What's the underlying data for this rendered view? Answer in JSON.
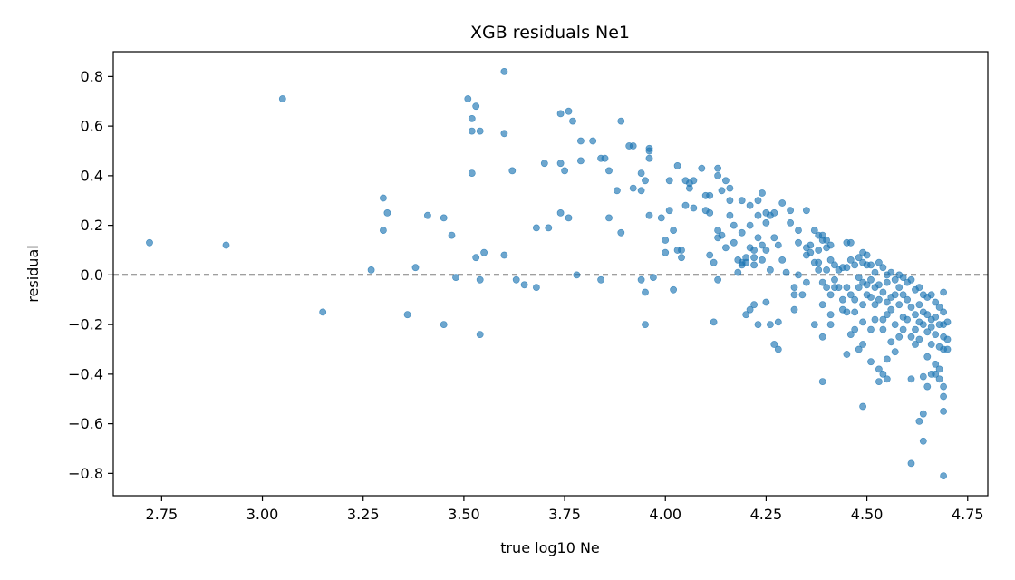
{
  "chart_data": {
    "type": "scatter",
    "title": "XGB residuals Ne1",
    "xlabel": "true log10 Ne",
    "ylabel": "residual",
    "xlim": [
      2.63,
      4.8
    ],
    "ylim": [
      -0.89,
      0.9
    ],
    "xticks": [
      2.75,
      3.0,
      3.25,
      3.5,
      3.75,
      4.0,
      4.25,
      4.5,
      4.75
    ],
    "xtick_labels": [
      "2.75",
      "3.00",
      "3.25",
      "3.50",
      "3.75",
      "4.00",
      "4.25",
      "4.50",
      "4.75"
    ],
    "yticks": [
      -0.8,
      -0.6,
      -0.4,
      -0.2,
      0.0,
      0.2,
      0.4,
      0.6,
      0.8
    ],
    "ytick_labels": [
      "−0.8",
      "−0.6",
      "−0.4",
      "−0.2",
      "0.0",
      "0.2",
      "0.4",
      "0.6",
      "0.8"
    ],
    "reference_line": {
      "y": 0.0,
      "style": "dashed",
      "color": "#000000"
    },
    "grid": false,
    "legend": "none",
    "point_color": "#1f77b4",
    "points": [
      [
        2.72,
        0.13
      ],
      [
        2.91,
        0.12
      ],
      [
        3.05,
        0.71
      ],
      [
        3.15,
        -0.15
      ],
      [
        3.27,
        0.02
      ],
      [
        3.3,
        0.31
      ],
      [
        3.31,
        0.25
      ],
      [
        3.3,
        0.18
      ],
      [
        3.36,
        -0.16
      ],
      [
        3.38,
        0.03
      ],
      [
        3.41,
        0.24
      ],
      [
        3.45,
        0.23
      ],
      [
        3.45,
        -0.2
      ],
      [
        3.47,
        0.16
      ],
      [
        3.48,
        -0.01
      ],
      [
        3.51,
        0.71
      ],
      [
        3.52,
        0.63
      ],
      [
        3.53,
        0.68
      ],
      [
        3.52,
        0.58
      ],
      [
        3.54,
        0.58
      ],
      [
        3.52,
        0.41
      ],
      [
        3.53,
        0.07
      ],
      [
        3.55,
        0.09
      ],
      [
        3.54,
        -0.02
      ],
      [
        3.54,
        -0.24
      ],
      [
        3.6,
        0.82
      ],
      [
        3.6,
        0.57
      ],
      [
        3.62,
        0.42
      ],
      [
        3.6,
        0.08
      ],
      [
        3.63,
        -0.02
      ],
      [
        3.65,
        -0.04
      ],
      [
        3.68,
        -0.05
      ],
      [
        3.68,
        0.19
      ],
      [
        3.7,
        0.45
      ],
      [
        3.71,
        0.19
      ],
      [
        3.74,
        0.65
      ],
      [
        3.76,
        0.66
      ],
      [
        3.77,
        0.62
      ],
      [
        3.74,
        0.45
      ],
      [
        3.75,
        0.42
      ],
      [
        3.74,
        0.25
      ],
      [
        3.76,
        0.23
      ],
      [
        3.78,
        0.0
      ],
      [
        3.79,
        0.54
      ],
      [
        3.79,
        0.46
      ],
      [
        3.82,
        0.54
      ],
      [
        3.84,
        0.47
      ],
      [
        3.85,
        0.47
      ],
      [
        3.86,
        0.42
      ],
      [
        3.86,
        0.23
      ],
      [
        3.84,
        -0.02
      ],
      [
        3.88,
        0.34
      ],
      [
        3.89,
        0.62
      ],
      [
        3.89,
        0.17
      ],
      [
        3.91,
        0.52
      ],
      [
        3.92,
        0.52
      ],
      [
        3.92,
        0.35
      ],
      [
        3.94,
        0.41
      ],
      [
        3.95,
        0.38
      ],
      [
        3.94,
        0.34
      ],
      [
        3.94,
        -0.02
      ],
      [
        3.96,
        0.51
      ],
      [
        3.96,
        0.5
      ],
      [
        3.96,
        0.47
      ],
      [
        3.96,
        0.24
      ],
      [
        3.95,
        -0.07
      ],
      [
        3.95,
        -0.2
      ],
      [
        3.97,
        -0.01
      ],
      [
        3.99,
        0.23
      ],
      [
        4.0,
        0.14
      ],
      [
        4.0,
        0.09
      ],
      [
        4.01,
        0.38
      ],
      [
        4.01,
        0.26
      ],
      [
        4.02,
        0.18
      ],
      [
        4.03,
        0.44
      ],
      [
        4.03,
        0.1
      ],
      [
        4.04,
        0.1
      ],
      [
        4.04,
        0.07
      ],
      [
        4.05,
        0.38
      ],
      [
        4.05,
        0.28
      ],
      [
        4.02,
        -0.06
      ],
      [
        4.06,
        0.37
      ],
      [
        4.06,
        0.35
      ],
      [
        4.07,
        0.38
      ],
      [
        4.07,
        0.27
      ],
      [
        4.09,
        0.43
      ],
      [
        4.1,
        0.32
      ],
      [
        4.11,
        0.32
      ],
      [
        4.1,
        0.26
      ],
      [
        4.11,
        0.25
      ],
      [
        4.12,
        0.05
      ],
      [
        4.11,
        0.08
      ],
      [
        4.13,
        0.43
      ],
      [
        4.13,
        0.4
      ],
      [
        4.14,
        0.34
      ],
      [
        4.13,
        0.18
      ],
      [
        4.14,
        0.16
      ],
      [
        4.13,
        0.15
      ],
      [
        4.12,
        -0.19
      ],
      [
        4.13,
        -0.02
      ],
      [
        4.15,
        0.38
      ],
      [
        4.16,
        0.35
      ],
      [
        4.16,
        0.3
      ],
      [
        4.16,
        0.24
      ],
      [
        4.15,
        0.11
      ],
      [
        4.17,
        0.2
      ],
      [
        4.17,
        0.13
      ],
      [
        4.18,
        0.06
      ],
      [
        4.18,
        0.01
      ],
      [
        4.19,
        0.3
      ],
      [
        4.19,
        0.17
      ],
      [
        4.19,
        0.05
      ],
      [
        4.19,
        0.04
      ],
      [
        4.2,
        0.05
      ],
      [
        4.2,
        0.07
      ],
      [
        4.21,
        0.28
      ],
      [
        4.21,
        0.2
      ],
      [
        4.21,
        0.11
      ],
      [
        4.22,
        0.1
      ],
      [
        4.22,
        0.07
      ],
      [
        4.22,
        0.04
      ],
      [
        4.23,
        0.3
      ],
      [
        4.23,
        0.24
      ],
      [
        4.23,
        0.15
      ],
      [
        4.24,
        0.33
      ],
      [
        4.24,
        0.12
      ],
      [
        4.24,
        0.06
      ],
      [
        4.25,
        0.25
      ],
      [
        4.25,
        0.21
      ],
      [
        4.25,
        0.1
      ],
      [
        4.26,
        0.24
      ],
      [
        4.27,
        0.25
      ],
      [
        4.27,
        0.15
      ],
      [
        4.26,
        0.02
      ],
      [
        4.25,
        -0.11
      ],
      [
        4.23,
        -0.2
      ],
      [
        4.22,
        -0.12
      ],
      [
        4.21,
        -0.14
      ],
      [
        4.2,
        -0.16
      ],
      [
        4.26,
        -0.2
      ],
      [
        4.27,
        -0.28
      ],
      [
        4.28,
        -0.3
      ],
      [
        4.28,
        -0.19
      ],
      [
        4.28,
        0.12
      ],
      [
        4.29,
        0.29
      ],
      [
        4.29,
        0.06
      ],
      [
        4.3,
        0.01
      ],
      [
        4.31,
        0.26
      ],
      [
        4.31,
        0.21
      ],
      [
        4.32,
        -0.14
      ],
      [
        4.32,
        -0.08
      ],
      [
        4.32,
        -0.05
      ],
      [
        4.33,
        0.18
      ],
      [
        4.33,
        0.13
      ],
      [
        4.33,
        0.0
      ],
      [
        4.34,
        -0.08
      ],
      [
        4.35,
        0.26
      ],
      [
        4.35,
        0.11
      ],
      [
        4.35,
        -0.03
      ],
      [
        4.35,
        0.08
      ],
      [
        4.36,
        0.12
      ],
      [
        4.36,
        0.09
      ],
      [
        4.37,
        0.18
      ],
      [
        4.37,
        0.05
      ],
      [
        4.37,
        -0.2
      ],
      [
        4.38,
        0.16
      ],
      [
        4.38,
        0.1
      ],
      [
        4.38,
        0.05
      ],
      [
        4.38,
        0.02
      ],
      [
        4.39,
        0.16
      ],
      [
        4.39,
        0.14
      ],
      [
        4.39,
        -0.03
      ],
      [
        4.39,
        -0.12
      ],
      [
        4.4,
        0.14
      ],
      [
        4.4,
        0.11
      ],
      [
        4.4,
        0.02
      ],
      [
        4.4,
        -0.05
      ],
      [
        4.41,
        0.12
      ],
      [
        4.41,
        0.06
      ],
      [
        4.41,
        -0.08
      ],
      [
        4.41,
        -0.16
      ],
      [
        4.39,
        -0.25
      ],
      [
        4.39,
        -0.43
      ],
      [
        4.41,
        -0.2
      ],
      [
        4.42,
        0.04
      ],
      [
        4.42,
        -0.05
      ],
      [
        4.42,
        -0.02
      ],
      [
        4.43,
        0.02
      ],
      [
        4.43,
        -0.05
      ],
      [
        4.44,
        0.03
      ],
      [
        4.44,
        -0.14
      ],
      [
        4.44,
        -0.1
      ],
      [
        4.45,
        0.13
      ],
      [
        4.45,
        0.03
      ],
      [
        4.45,
        -0.05
      ],
      [
        4.45,
        -0.15
      ],
      [
        4.46,
        0.13
      ],
      [
        4.46,
        0.06
      ],
      [
        4.46,
        -0.08
      ],
      [
        4.46,
        -0.24
      ],
      [
        4.45,
        -0.32
      ],
      [
        4.47,
        0.04
      ],
      [
        4.47,
        -0.1
      ],
      [
        4.47,
        -0.15
      ],
      [
        4.47,
        -0.22
      ],
      [
        4.48,
        0.07
      ],
      [
        4.48,
        -0.01
      ],
      [
        4.48,
        -0.05
      ],
      [
        4.48,
        -0.3
      ],
      [
        4.49,
        0.09
      ],
      [
        4.49,
        0.05
      ],
      [
        4.49,
        -0.03
      ],
      [
        4.49,
        -0.12
      ],
      [
        4.49,
        -0.19
      ],
      [
        4.49,
        -0.28
      ],
      [
        4.49,
        -0.53
      ],
      [
        4.5,
        0.08
      ],
      [
        4.5,
        0.04
      ],
      [
        4.5,
        -0.04
      ],
      [
        4.5,
        -0.08
      ],
      [
        4.51,
        0.04
      ],
      [
        4.51,
        -0.02
      ],
      [
        4.51,
        -0.09
      ],
      [
        4.51,
        -0.22
      ],
      [
        4.51,
        -0.35
      ],
      [
        4.52,
        0.01
      ],
      [
        4.52,
        -0.05
      ],
      [
        4.52,
        -0.12
      ],
      [
        4.52,
        -0.18
      ],
      [
        4.53,
        0.05
      ],
      [
        4.53,
        -0.04
      ],
      [
        4.53,
        -0.1
      ],
      [
        4.53,
        -0.38
      ],
      [
        4.53,
        -0.43
      ],
      [
        4.54,
        0.03
      ],
      [
        4.54,
        -0.07
      ],
      [
        4.54,
        -0.18
      ],
      [
        4.54,
        -0.22
      ],
      [
        4.54,
        -0.4
      ],
      [
        4.55,
        0.0
      ],
      [
        4.55,
        -0.03
      ],
      [
        4.55,
        -0.11
      ],
      [
        4.55,
        -0.16
      ],
      [
        4.55,
        -0.34
      ],
      [
        4.55,
        -0.42
      ],
      [
        4.56,
        0.01
      ],
      [
        4.56,
        -0.09
      ],
      [
        4.56,
        -0.14
      ],
      [
        4.56,
        -0.27
      ],
      [
        4.57,
        -0.02
      ],
      [
        4.57,
        -0.08
      ],
      [
        4.57,
        -0.2
      ],
      [
        4.57,
        -0.31
      ],
      [
        4.58,
        0.0
      ],
      [
        4.58,
        -0.05
      ],
      [
        4.58,
        -0.12
      ],
      [
        4.58,
        -0.25
      ],
      [
        4.59,
        -0.01
      ],
      [
        4.59,
        -0.08
      ],
      [
        4.59,
        -0.17
      ],
      [
        4.59,
        -0.22
      ],
      [
        4.6,
        -0.03
      ],
      [
        4.6,
        -0.1
      ],
      [
        4.6,
        -0.18
      ],
      [
        4.61,
        -0.02
      ],
      [
        4.61,
        -0.13
      ],
      [
        4.61,
        -0.25
      ],
      [
        4.61,
        -0.42
      ],
      [
        4.61,
        -0.76
      ],
      [
        4.62,
        -0.06
      ],
      [
        4.62,
        -0.16
      ],
      [
        4.62,
        -0.22
      ],
      [
        4.62,
        -0.28
      ],
      [
        4.63,
        -0.05
      ],
      [
        4.63,
        -0.12
      ],
      [
        4.63,
        -0.19
      ],
      [
        4.63,
        -0.26
      ],
      [
        4.63,
        -0.59
      ],
      [
        4.64,
        -0.08
      ],
      [
        4.64,
        -0.15
      ],
      [
        4.64,
        -0.2
      ],
      [
        4.64,
        -0.41
      ],
      [
        4.64,
        -0.56
      ],
      [
        4.64,
        -0.67
      ],
      [
        4.65,
        -0.09
      ],
      [
        4.65,
        -0.16
      ],
      [
        4.65,
        -0.23
      ],
      [
        4.65,
        -0.33
      ],
      [
        4.65,
        -0.45
      ],
      [
        4.66,
        -0.08
      ],
      [
        4.66,
        -0.18
      ],
      [
        4.66,
        -0.21
      ],
      [
        4.66,
        -0.28
      ],
      [
        4.66,
        -0.4
      ],
      [
        4.67,
        -0.11
      ],
      [
        4.67,
        -0.17
      ],
      [
        4.67,
        -0.24
      ],
      [
        4.67,
        -0.36
      ],
      [
        4.67,
        -0.4
      ],
      [
        4.68,
        -0.13
      ],
      [
        4.68,
        -0.2
      ],
      [
        4.68,
        -0.29
      ],
      [
        4.68,
        -0.38
      ],
      [
        4.68,
        -0.42
      ],
      [
        4.69,
        -0.07
      ],
      [
        4.69,
        -0.15
      ],
      [
        4.69,
        -0.2
      ],
      [
        4.69,
        -0.25
      ],
      [
        4.69,
        -0.3
      ],
      [
        4.69,
        -0.45
      ],
      [
        4.69,
        -0.49
      ],
      [
        4.69,
        -0.55
      ],
      [
        4.69,
        -0.81
      ],
      [
        4.7,
        -0.26
      ],
      [
        4.7,
        -0.3
      ],
      [
        4.7,
        -0.19
      ]
    ]
  }
}
